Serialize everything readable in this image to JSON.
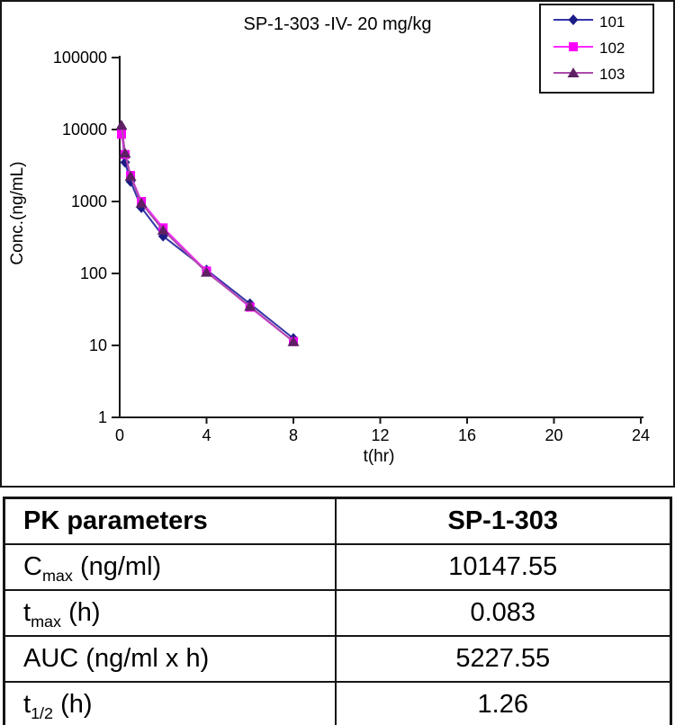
{
  "chart_data": {
    "type": "line",
    "title": "SP-1-303 -IV- 20 mg/kg",
    "xlabel": "t(hr)",
    "ylabel": "Conc.(ng/mL)",
    "x_scale": "linear",
    "y_scale": "log",
    "xlim": [
      0,
      24
    ],
    "ylim": [
      1,
      100000
    ],
    "x_ticks": [
      0,
      4,
      8,
      12,
      16,
      20,
      24
    ],
    "y_ticks": [
      1,
      10,
      100,
      1000,
      10000,
      100000
    ],
    "grid": false,
    "legend_position": "top-right",
    "axis_color": "#1a1a1a",
    "x": [
      0.083,
      0.25,
      0.5,
      1,
      2,
      4,
      6,
      8
    ],
    "series": [
      {
        "name": "101",
        "marker": "diamond",
        "line_color": "#3434a8",
        "marker_color": "#1c1c86",
        "values": [
          10000,
          3500,
          1900,
          820,
          330,
          112,
          38,
          12.5
        ]
      },
      {
        "name": "102",
        "marker": "square",
        "line_color": "#ff2bff",
        "marker_color": "#ff00ff",
        "values": [
          8600,
          4500,
          2300,
          1000,
          430,
          108,
          34,
          11.3
        ]
      },
      {
        "name": "103",
        "marker": "triangle",
        "line_color": "#ac4bac",
        "marker_color": "#5e2063",
        "values": [
          11500,
          4700,
          2250,
          950,
          400,
          104,
          35,
          11.3
        ]
      }
    ]
  },
  "table": {
    "header": {
      "param": "PK parameters",
      "value": "SP-1-303"
    },
    "rows": [
      {
        "param_main": "C",
        "param_sub": "max",
        "param_rest": " (ng/ml)",
        "value": "10147.55"
      },
      {
        "param_main": "t",
        "param_sub": "max",
        "param_rest": " (h)",
        "value": "0.083"
      },
      {
        "param_main": "AUC",
        "param_sub": "",
        "param_rest": " (ng/ml x h)",
        "value": "5227.55"
      },
      {
        "param_main": "t",
        "param_sub": "1/2",
        "param_rest": " (h)",
        "value": "1.26"
      }
    ]
  }
}
